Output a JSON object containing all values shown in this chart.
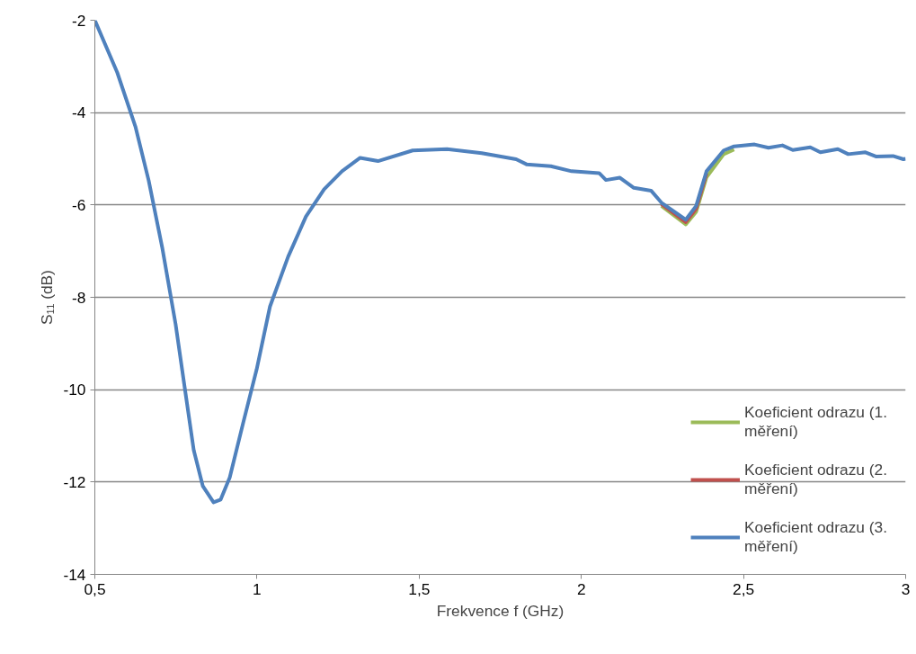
{
  "chart_data": {
    "type": "line",
    "xlabel": "Frekvence f (GHz)",
    "ylabel": "S₁₁ (dB)",
    "xlim": [
      0.5,
      3
    ],
    "ylim": [
      -14,
      -2
    ],
    "xticks": [
      {
        "value": 0.5,
        "label": "0,5"
      },
      1,
      {
        "value": 1.5,
        "label": "1,5"
      },
      2,
      {
        "value": 2.5,
        "label": "2,5"
      },
      3
    ],
    "yticks": [
      -14,
      -12,
      -10,
      -8,
      -6,
      -4,
      -2
    ],
    "grid": "y",
    "legend": "bottom right",
    "marker": "none",
    "line_style": "solid",
    "x": [
      0.5,
      0.569,
      0.625,
      0.666,
      0.708,
      0.749,
      0.777,
      0.805,
      0.833,
      0.866,
      0.888,
      0.916,
      0.957,
      0.999,
      1.04,
      1.096,
      1.151,
      1.207,
      1.262,
      1.318,
      1.373,
      1.48,
      1.586,
      1.693,
      1.799,
      1.831,
      1.906,
      1.97,
      2.055,
      2.076,
      2.119,
      2.162,
      2.215,
      2.247,
      2.322,
      2.354,
      2.386,
      2.439,
      2.471,
      2.534,
      2.577,
      2.62,
      2.652,
      2.706,
      2.737,
      2.791,
      2.823,
      2.876,
      2.908,
      2.961,
      2.993,
      3.0
    ],
    "series": [
      {
        "name": "Koeficient odrazu (1. měření)",
        "color": "#9bbb59",
        "values": [
          null,
          null,
          null,
          null,
          null,
          null,
          null,
          null,
          null,
          null,
          null,
          null,
          null,
          null,
          null,
          null,
          null,
          null,
          null,
          null,
          null,
          null,
          null,
          null,
          null,
          null,
          null,
          null,
          null,
          null,
          null,
          null,
          null,
          -6.02,
          -6.42,
          -6.15,
          -5.4,
          -4.9,
          -4.8,
          null,
          null,
          null,
          null,
          null,
          null,
          null,
          null,
          null,
          null,
          null,
          null,
          null
        ]
      },
      {
        "name": "Koeficient odrazu (2. měření)",
        "color": "#c0504d",
        "values": [
          null,
          null,
          null,
          null,
          null,
          null,
          null,
          null,
          null,
          null,
          null,
          null,
          null,
          null,
          null,
          null,
          null,
          null,
          null,
          null,
          null,
          null,
          null,
          null,
          null,
          null,
          null,
          null,
          null,
          null,
          null,
          null,
          null,
          -5.98,
          -6.37,
          -6.08,
          -5.32,
          null,
          null,
          null,
          null,
          null,
          null,
          null,
          null,
          null,
          null,
          null,
          null,
          null,
          null,
          null
        ]
      },
      {
        "name": "Koeficient odrazu (3. měření)",
        "color": "#4f81bd",
        "values": [
          -2,
          -3.13,
          -4.3,
          -5.47,
          -6.93,
          -8.58,
          -9.95,
          -11.31,
          -12.09,
          -12.44,
          -12.38,
          -11.9,
          -10.73,
          -9.56,
          -8.2,
          -7.12,
          -6.25,
          -5.66,
          -5.27,
          -4.98,
          -5.05,
          -4.82,
          -4.79,
          -4.88,
          -5.01,
          -5.12,
          -5.16,
          -5.27,
          -5.31,
          -5.46,
          -5.41,
          -5.63,
          -5.69,
          -5.95,
          -6.32,
          -6.02,
          -5.27,
          -4.82,
          -4.73,
          -4.69,
          -4.76,
          -4.71,
          -4.81,
          -4.75,
          -4.86,
          -4.79,
          -4.9,
          -4.86,
          -4.95,
          -4.94,
          -5.01,
          -5.0
        ]
      }
    ]
  }
}
